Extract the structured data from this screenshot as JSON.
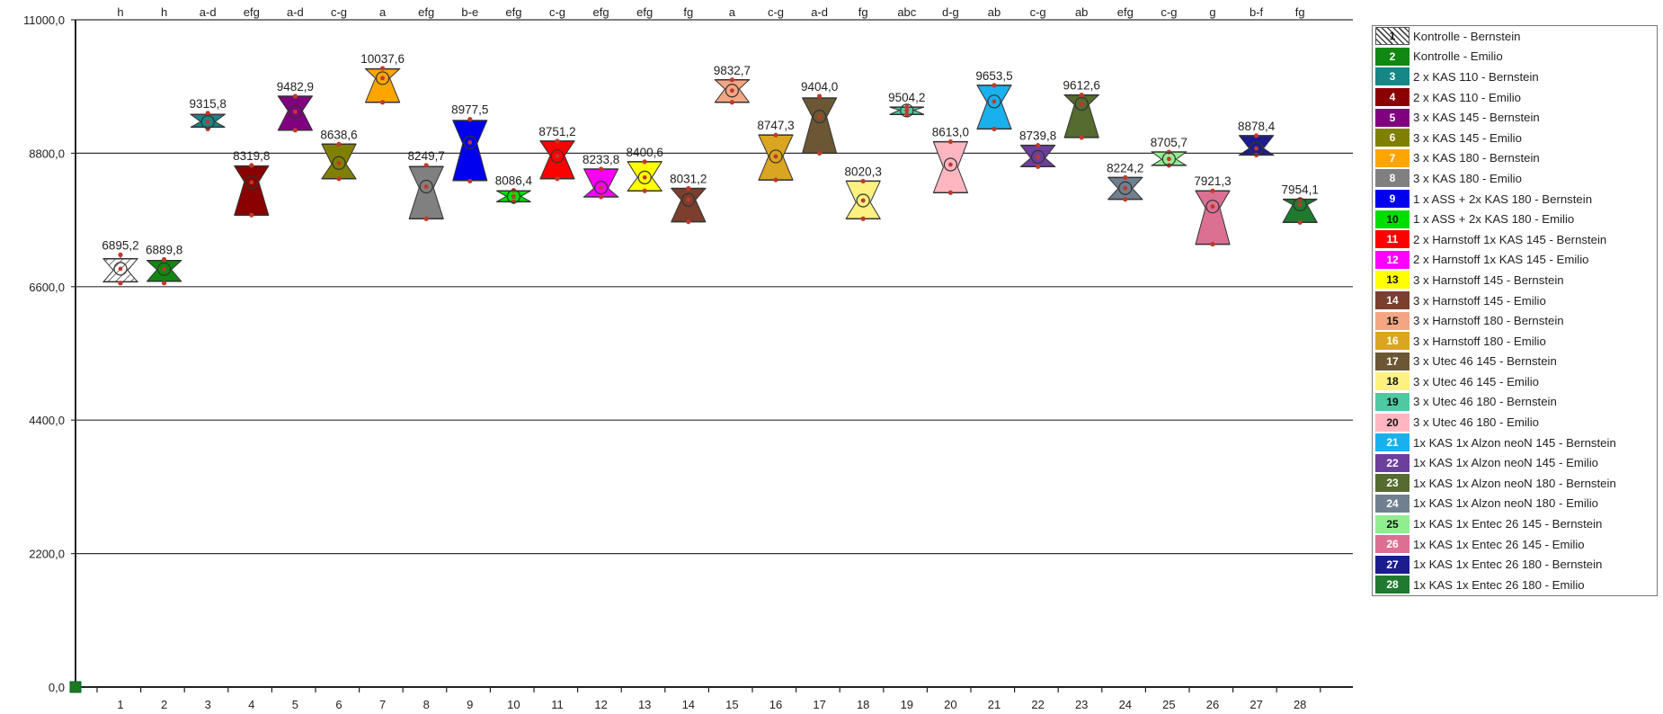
{
  "chart_data": {
    "type": "box",
    "y_ticks": [
      "0,0",
      "2200,0",
      "4400,0",
      "6600,0",
      "8800,0",
      "11000,0"
    ],
    "ylim": [
      0,
      11000
    ],
    "grid": true,
    "legend_position": "right",
    "categories": [
      "1",
      "2",
      "3",
      "4",
      "5",
      "6",
      "7",
      "8",
      "9",
      "10",
      "11",
      "12",
      "13",
      "14",
      "15",
      "16",
      "17",
      "18",
      "19",
      "20",
      "21",
      "22",
      "23",
      "24",
      "25",
      "26",
      "27",
      "28"
    ],
    "group_letters": [
      "h",
      "h",
      "a-d",
      "efg",
      "a-d",
      "c-g",
      "a",
      "efg",
      "b-e",
      "efg",
      "c-g",
      "efg",
      "efg",
      "fg",
      "a",
      "c-g",
      "a-d",
      "fg",
      "abc",
      "d-g",
      "ab",
      "c-g",
      "ab",
      "efg",
      "c-g",
      "g",
      "b-f",
      "fg"
    ],
    "mean_labels": [
      "6895,2",
      "6889,8",
      "9315,8",
      "8319,8",
      "9482,9",
      "8638,6",
      "10037,6",
      "8249,7",
      "8977,5",
      "8086,4",
      "8751,2",
      "8233,8",
      "8400,6",
      "8031,2",
      "9832,7",
      "8747,3",
      "9404,0",
      "8020,3",
      "9504,2",
      "8613,0",
      "9653,5",
      "8739,8",
      "9612,6",
      "8224,2",
      "8705,7",
      "7921,3",
      "8878,4",
      "7954,1"
    ],
    "series": [
      {
        "id": 1,
        "name": "Kontrolle - Bernstein",
        "color": "hatch",
        "mean": 6895.2,
        "min": 6660,
        "q1": 6680,
        "median": 6870,
        "q3": 7060,
        "max": 7125
      },
      {
        "id": 2,
        "name": "Kontrolle - Emilio",
        "color": "#118811",
        "mean": 6889.8,
        "min": 6660,
        "q1": 6690,
        "median": 6880,
        "q3": 7030,
        "max": 7050
      },
      {
        "id": 3,
        "name": "2 x KAS  110 - Bernstein",
        "color": "#168686",
        "mean": 9315.8,
        "min": 9200,
        "q1": 9230,
        "median": 9320,
        "q3": 9440,
        "max": 9460
      },
      {
        "id": 4,
        "name": "2 x KAS  110 - Emilio",
        "color": "#8b0000",
        "mean": 8319.8,
        "min": 7780,
        "q1": 7780,
        "median": 8330,
        "q3": 8590,
        "max": 8600
      },
      {
        "id": 5,
        "name": "3 x KAS 145 - Bernstein",
        "color": "#800080",
        "mean": 9482.9,
        "min": 9180,
        "q1": 9180,
        "median": 9500,
        "q3": 9740,
        "max": 9740
      },
      {
        "id": 6,
        "name": "3 x KAS 145 - Emilio",
        "color": "#808000",
        "mean": 8638.6,
        "min": 8380,
        "q1": 8380,
        "median": 8620,
        "q3": 8950,
        "max": 8950
      },
      {
        "id": 7,
        "name": "3 x KAS 180 - Bernstein",
        "color": "#ffa500",
        "mean": 10037.6,
        "min": 9640,
        "q1": 9640,
        "median": 10040,
        "q3": 10190,
        "max": 10200
      },
      {
        "id": 8,
        "name": "3 x KAS 180 - Emilio",
        "color": "#808080",
        "mean": 8249.7,
        "min": 7720,
        "q1": 7720,
        "median": 8230,
        "q3": 8580,
        "max": 8600
      },
      {
        "id": 9,
        "name": "1 x ASS + 2x KAS 180 - Bernstein",
        "color": "#0000ee",
        "mean": 8977.5,
        "min": 8340,
        "q1": 8350,
        "median": 8960,
        "q3": 9340,
        "max": 9360
      },
      {
        "id": 10,
        "name": "1 x ASS + 2x KAS 180 - Emilio",
        "color": "#00dd00",
        "mean": 8086.4,
        "min": 8000,
        "q1": 8000,
        "median": 8090,
        "q3": 8180,
        "max": 8190
      },
      {
        "id": 11,
        "name": "2 x Harnstoff 1x KAS 145 - Bernstein",
        "color": "#ff0000",
        "mean": 8751.2,
        "min": 8380,
        "q1": 8380,
        "median": 8760,
        "q3": 9000,
        "max": 9000
      },
      {
        "id": 12,
        "name": "2 x Harnstoff 1x KAS 145 - Emilio",
        "color": "#ff00ff",
        "mean": 8233.8,
        "min": 8080,
        "q1": 8080,
        "median": 8220,
        "q3": 8540,
        "max": 8540
      },
      {
        "id": 13,
        "name": "3 x Harnstoff 145 - Bernstein",
        "color": "#ffff00",
        "mean": 8400.6,
        "min": 8180,
        "q1": 8180,
        "median": 8400,
        "q3": 8660,
        "max": 8660
      },
      {
        "id": 14,
        "name": "3 x Harnstoff 145 - Emilio",
        "color": "#7b3f2e",
        "mean": 8031.2,
        "min": 7670,
        "q1": 7670,
        "median": 8030,
        "q3": 8220,
        "max": 8220
      },
      {
        "id": 15,
        "name": "3 x Harnstoff 180 - Bernstein",
        "color": "#f4a582",
        "mean": 9832.7,
        "min": 9640,
        "q1": 9640,
        "median": 9860,
        "q3": 10010,
        "max": 10010
      },
      {
        "id": 16,
        "name": "3 x Harnstoff 180 - Emilio",
        "color": "#daa520",
        "mean": 8747.3,
        "min": 8360,
        "q1": 8360,
        "median": 8750,
        "q3": 9100,
        "max": 9100
      },
      {
        "id": 17,
        "name": "3 x Utec 46 145 - Bernstein",
        "color": "#6b5733",
        "mean": 9404.0,
        "min": 8800,
        "q1": 8800,
        "median": 9400,
        "q3": 9710,
        "max": 9740
      },
      {
        "id": 18,
        "name": "3 x Utec 46 145 - Emilio",
        "color": "#fff180",
        "mean": 8020.3,
        "min": 7720,
        "q1": 7720,
        "median": 7990,
        "q3": 8340,
        "max": 8340
      },
      {
        "id": 19,
        "name": "3 x Utec 46 180 - Bernstein",
        "color": "#4fc9a1",
        "mean": 9504.2,
        "min": 9440,
        "q1": 9440,
        "median": 9510,
        "q3": 9560,
        "max": 9560
      },
      {
        "id": 20,
        "name": "3 x Utec 46 180 - Emilio",
        "color": "#ffb6c1",
        "mean": 8613.0,
        "min": 8150,
        "q1": 8150,
        "median": 8570,
        "q3": 8990,
        "max": 8990
      },
      {
        "id": 21,
        "name": "1x KAS 1x Alzon neoN 145 - Bernstein",
        "color": "#1ab0ee",
        "mean": 9653.5,
        "min": 9200,
        "q1": 9200,
        "median": 9640,
        "q3": 9920,
        "max": 9920
      },
      {
        "id": 22,
        "name": "1x KAS 1x Alzon neoN 145 - Emilio",
        "color": "#6b3f9b",
        "mean": 8739.8,
        "min": 8580,
        "q1": 8580,
        "median": 8720,
        "q3": 8930,
        "max": 8930
      },
      {
        "id": 23,
        "name": "1x KAS 1x Alzon neoN 180 - Bernstein",
        "color": "#556b2f",
        "mean": 9612.6,
        "min": 9060,
        "q1": 9060,
        "median": 9600,
        "q3": 9760,
        "max": 9760
      },
      {
        "id": 24,
        "name": "1x KAS 1x Alzon neoN 180 - Emilio",
        "color": "#708090",
        "mean": 8224.2,
        "min": 8040,
        "q1": 8040,
        "median": 8220,
        "q3": 8400,
        "max": 8400
      },
      {
        "id": 25,
        "name": "1x KAS 1x Entec 26 145 - Bernstein",
        "color": "#90ee90",
        "mean": 8705.7,
        "min": 8600,
        "q1": 8600,
        "median": 8700,
        "q3": 8820,
        "max": 8820
      },
      {
        "id": 26,
        "name": "1x KAS 1x Entec 26 145 - Emilio",
        "color": "#db7093",
        "mean": 7921.3,
        "min": 7300,
        "q1": 7300,
        "median": 7900,
        "q3": 8180,
        "max": 8180
      },
      {
        "id": 27,
        "name": "1x KAS 1x Entec 26 180 - Bernstein",
        "color": "#1c1c8f",
        "mean": 8878.4,
        "min": 8770,
        "q1": 8770,
        "median": 8880,
        "q3": 9090,
        "max": 9090
      },
      {
        "id": 28,
        "name": "1x KAS 1x Entec 26 180 - Emilio",
        "color": "#1f7a2f",
        "mean": 7954.1,
        "min": 7660,
        "q1": 7660,
        "median": 7950,
        "q3": 8040,
        "max": 8040
      }
    ]
  }
}
